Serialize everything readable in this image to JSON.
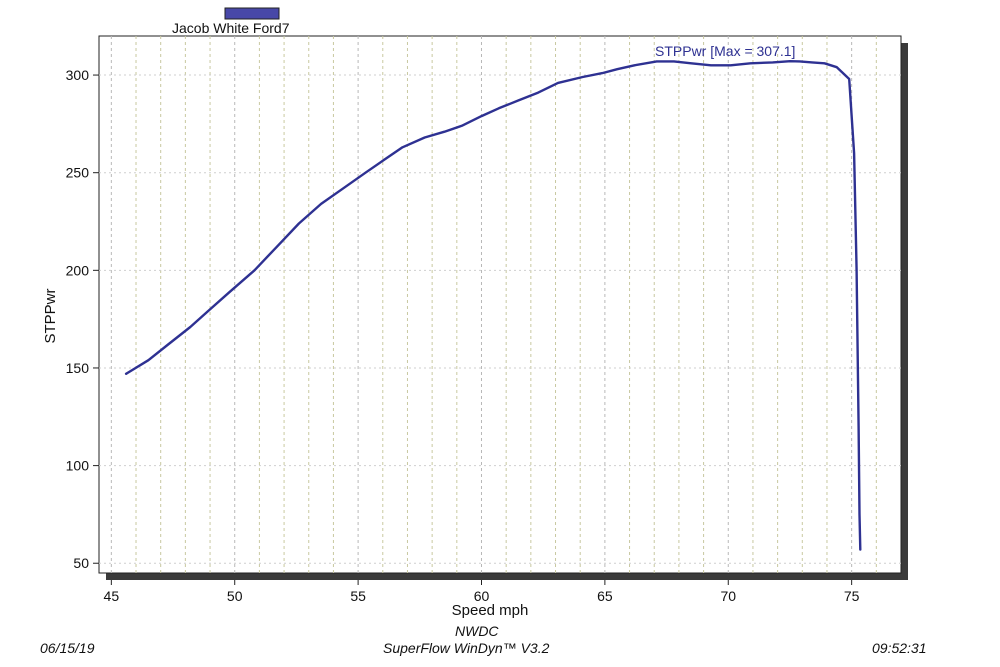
{
  "chart_data": {
    "type": "line",
    "legend": {
      "label": "Jacob White Ford7",
      "color": "#4848a8",
      "placement": "top-left"
    },
    "xlabel": "Speed  mph",
    "ylabel": "STPPwr",
    "xlim": [
      44.5,
      77
    ],
    "ylim": [
      45,
      320
    ],
    "x_ticks": [
      45,
      50,
      55,
      60,
      65,
      70,
      75
    ],
    "y_ticks": [
      50,
      100,
      150,
      200,
      250,
      300
    ],
    "x_minor_step": 1,
    "grid": true,
    "line_color": "#2e3192",
    "annotation": "STPPwr [Max = 307.1]",
    "series": [
      {
        "name": "STPPwr",
        "x": [
          45.6,
          46.5,
          47.3,
          48.2,
          49.0,
          49.8,
          50.8,
          51.7,
          52.6,
          53.5,
          54.4,
          55.3,
          56.1,
          56.8,
          57.7,
          58.5,
          59.2,
          60.0,
          60.7,
          61.5,
          62.3,
          63.1,
          64.1,
          64.9,
          65.5,
          66.2,
          67.1,
          67.8,
          68.5,
          69.3,
          70.1,
          70.9,
          71.8,
          72.5,
          72.9,
          73.4,
          73.9,
          74.4,
          74.9,
          75.1,
          75.2,
          75.28,
          75.32,
          75.35
        ],
        "y": [
          147,
          154,
          162,
          171,
          180,
          189,
          200,
          212,
          224,
          234,
          242,
          250,
          257,
          263,
          268,
          271,
          274,
          279,
          283,
          287,
          291,
          296,
          299,
          301,
          303,
          305,
          307,
          307,
          306,
          305,
          305,
          306,
          306.5,
          307.1,
          307,
          306.5,
          306,
          304,
          298,
          260,
          200,
          120,
          75,
          57
        ]
      }
    ]
  },
  "footer": {
    "date": "06/15/19",
    "org": "NWDC",
    "software": "SuperFlow WinDyn™ V3.2",
    "time": "09:52:31"
  }
}
